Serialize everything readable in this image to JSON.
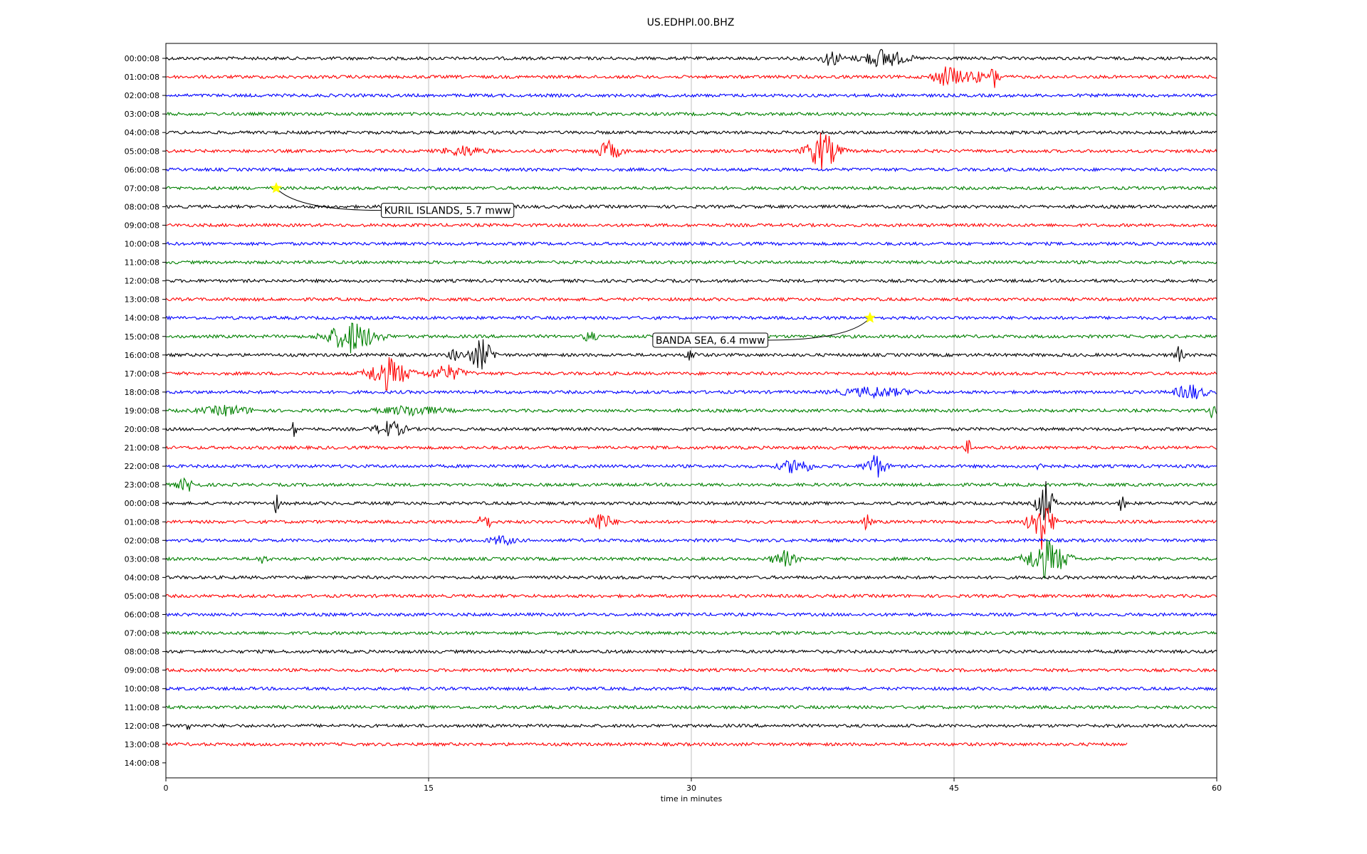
{
  "chart_data": {
    "type": "line",
    "title": "US.EDHPI.00.BHZ",
    "xlabel": "time in minutes",
    "ylabel": "",
    "xlim": [
      0,
      60
    ],
    "x_ticks": [
      0,
      15,
      30,
      45,
      60
    ],
    "grid": "vertical",
    "trace_colors": [
      "#000000",
      "#ff0000",
      "#0000ff",
      "#008000"
    ],
    "row_labels": [
      "00:00:08",
      "01:00:08",
      "02:00:08",
      "03:00:08",
      "04:00:08",
      "05:00:08",
      "06:00:08",
      "07:00:08",
      "08:00:08",
      "09:00:08",
      "10:00:08",
      "11:00:08",
      "12:00:08",
      "13:00:08",
      "14:00:08",
      "15:00:08",
      "16:00:08",
      "17:00:08",
      "18:00:08",
      "19:00:08",
      "20:00:08",
      "21:00:08",
      "22:00:08",
      "23:00:08",
      "00:00:08",
      "01:00:08",
      "02:00:08",
      "03:00:08",
      "04:00:08",
      "05:00:08",
      "06:00:08",
      "07:00:08",
      "08:00:08",
      "09:00:08",
      "10:00:08",
      "11:00:08",
      "12:00:08",
      "13:00:08",
      "14:00:08"
    ],
    "last_trace_end_minute": 54.9,
    "events": [
      {
        "minute": 38.0,
        "row": 0,
        "amp": 0.5,
        "dur": 1.0
      },
      {
        "minute": 41.0,
        "row": 0,
        "amp": 0.6,
        "dur": 2.2
      },
      {
        "minute": 44.7,
        "row": 1,
        "amp": 0.7,
        "dur": 1.5
      },
      {
        "minute": 47.3,
        "row": 1,
        "amp": 0.8,
        "dur": 0.5
      },
      {
        "minute": 46.2,
        "row": 1,
        "amp": 0.4,
        "dur": 0.8
      },
      {
        "minute": 25.3,
        "row": 5,
        "amp": 0.6,
        "dur": 1.2
      },
      {
        "minute": 37.5,
        "row": 5,
        "amp": 1.2,
        "dur": 1.6
      },
      {
        "minute": 17.0,
        "row": 5,
        "amp": 0.3,
        "dur": 2.0
      },
      {
        "minute": 10.6,
        "row": 15,
        "amp": 1.0,
        "dur": 2.5
      },
      {
        "minute": 24.2,
        "row": 15,
        "amp": 0.4,
        "dur": 0.6
      },
      {
        "minute": 18.0,
        "row": 16,
        "amp": 1.0,
        "dur": 1.2
      },
      {
        "minute": 16.5,
        "row": 16,
        "amp": 0.4,
        "dur": 0.6
      },
      {
        "minute": 30.0,
        "row": 16,
        "amp": 0.4,
        "dur": 0.5
      },
      {
        "minute": 57.8,
        "row": 16,
        "amp": 0.5,
        "dur": 0.5
      },
      {
        "minute": 12.7,
        "row": 17,
        "amp": 1.0,
        "dur": 2.0
      },
      {
        "minute": 16.0,
        "row": 17,
        "amp": 0.5,
        "dur": 1.8
      },
      {
        "minute": 40.5,
        "row": 18,
        "amp": 0.3,
        "dur": 3.5
      },
      {
        "minute": 58.5,
        "row": 18,
        "amp": 0.5,
        "dur": 1.5
      },
      {
        "minute": 3.5,
        "row": 19,
        "amp": 0.3,
        "dur": 2.5
      },
      {
        "minute": 14.0,
        "row": 19,
        "amp": 0.3,
        "dur": 3.0
      },
      {
        "minute": 59.8,
        "row": 19,
        "amp": 0.7,
        "dur": 0.3
      },
      {
        "minute": 7.3,
        "row": 20,
        "amp": 0.5,
        "dur": 0.3
      },
      {
        "minute": 12.8,
        "row": 20,
        "amp": 0.5,
        "dur": 1.5
      },
      {
        "minute": 45.8,
        "row": 21,
        "amp": 0.5,
        "dur": 0.3
      },
      {
        "minute": 36.0,
        "row": 22,
        "amp": 0.5,
        "dur": 1.5
      },
      {
        "minute": 40.5,
        "row": 22,
        "amp": 0.8,
        "dur": 1.0
      },
      {
        "minute": 50.0,
        "row": 22,
        "amp": 0.5,
        "dur": 0.4
      },
      {
        "minute": 1.2,
        "row": 23,
        "amp": 0.4,
        "dur": 1.0
      },
      {
        "minute": 6.3,
        "row": 24,
        "amp": 0.6,
        "dur": 0.3
      },
      {
        "minute": 50.2,
        "row": 24,
        "amp": 1.5,
        "dur": 0.8
      },
      {
        "minute": 54.6,
        "row": 24,
        "amp": 0.6,
        "dur": 0.3
      },
      {
        "minute": 18.2,
        "row": 25,
        "amp": 0.6,
        "dur": 0.6
      },
      {
        "minute": 24.8,
        "row": 25,
        "amp": 0.6,
        "dur": 1.2
      },
      {
        "minute": 50.0,
        "row": 25,
        "amp": 1.6,
        "dur": 1.2
      },
      {
        "minute": 40.0,
        "row": 25,
        "amp": 0.5,
        "dur": 0.4
      },
      {
        "minute": 19.2,
        "row": 26,
        "amp": 0.3,
        "dur": 1.2
      },
      {
        "minute": 35.3,
        "row": 27,
        "amp": 0.5,
        "dur": 1.2
      },
      {
        "minute": 50.3,
        "row": 27,
        "amp": 1.2,
        "dur": 2.0
      },
      {
        "minute": 5.5,
        "row": 27,
        "amp": 0.3,
        "dur": 0.4
      },
      {
        "minute": 1.3,
        "row": 36,
        "amp": 0.3,
        "dur": 0.3
      }
    ],
    "markers": [
      {
        "label": "KURIL ISLANDS, 5.7 mww",
        "row": 7,
        "minute": 6.3,
        "box_row": 8.2,
        "box_minute": 12.3
      },
      {
        "label": "BANDA SEA, 6.4 mww",
        "row": 14,
        "minute": 40.2,
        "box_row": 15.2,
        "box_minute": 27.8
      }
    ]
  }
}
